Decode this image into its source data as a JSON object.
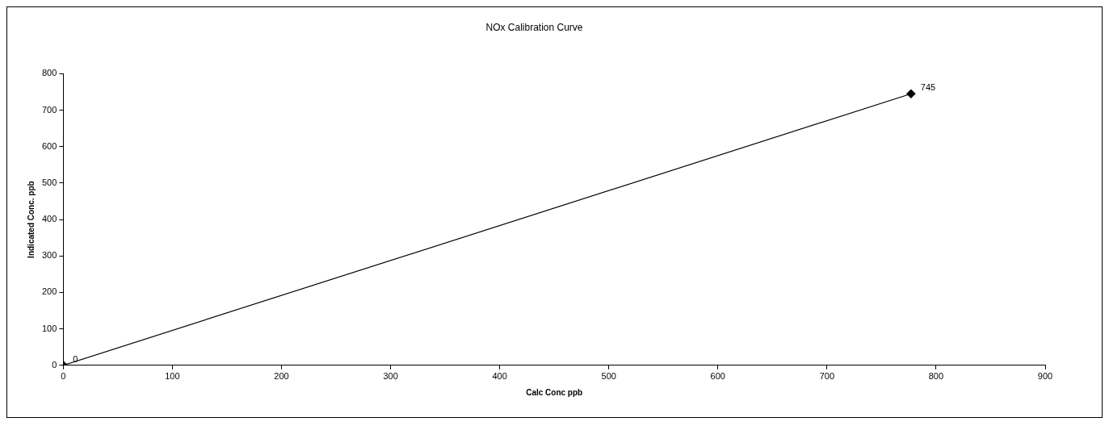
{
  "chart_data": {
    "type": "line",
    "title": "NOx Calibration Curve",
    "xlabel": "Calc Conc ppb",
    "ylabel": "Indicated Conc. ppb",
    "x": [
      0,
      777
    ],
    "series": [
      {
        "color": "#000000",
        "values": [
          0,
          745
        ]
      }
    ],
    "xlim": [
      0,
      900
    ],
    "xticks": [
      0,
      100,
      200,
      300,
      400,
      500,
      600,
      700,
      800,
      900
    ],
    "ylim": [
      0,
      800
    ],
    "yticks": [
      0,
      100,
      200,
      300,
      400,
      500,
      600,
      700,
      800
    ],
    "marker": "diamond",
    "line_style": "solid",
    "data_labels": true,
    "grid": false,
    "legend": false
  }
}
